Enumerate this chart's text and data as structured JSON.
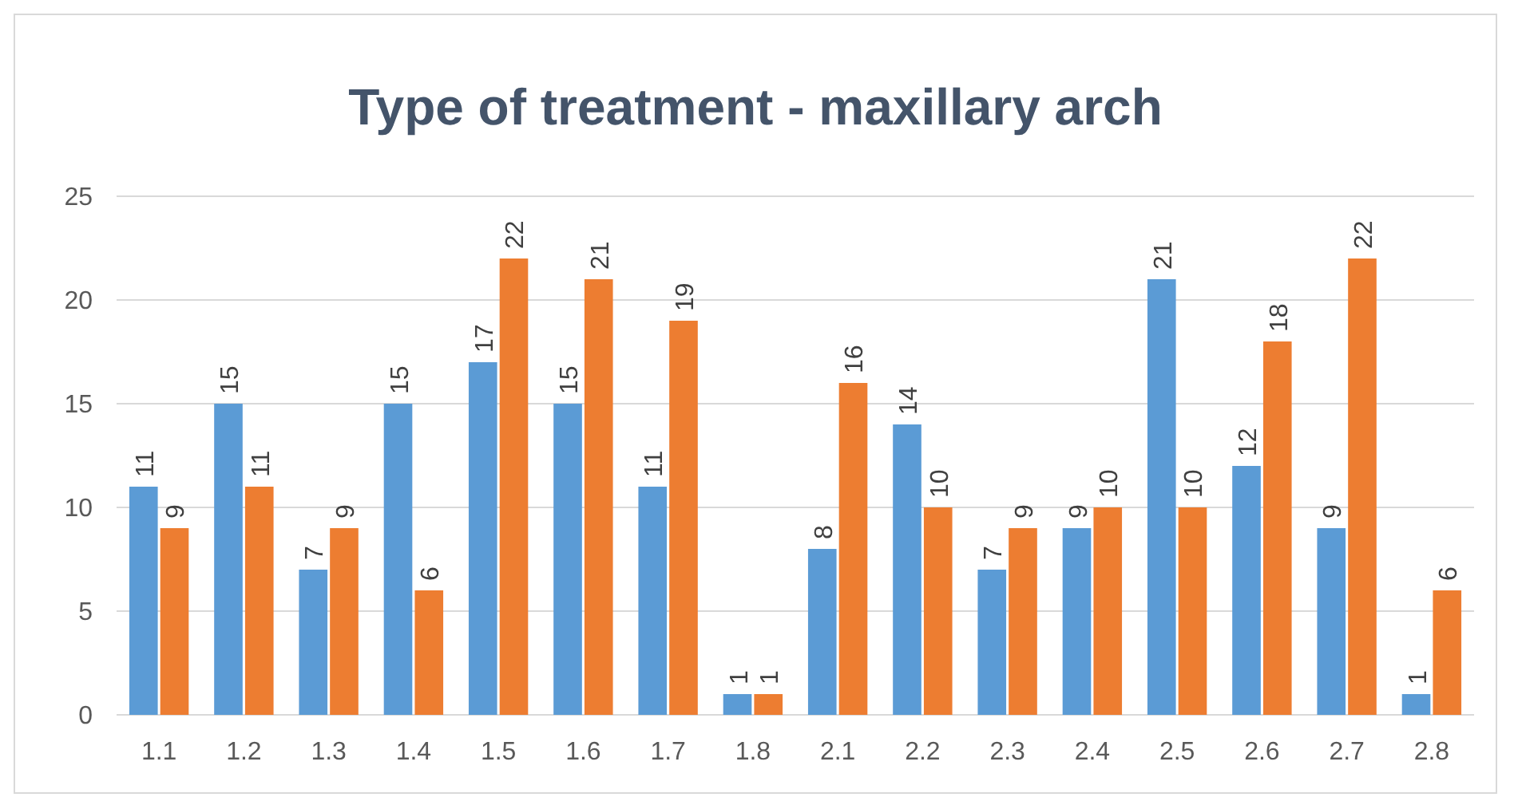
{
  "chart_data": {
    "type": "bar",
    "title": "Type of treatment - maxillary arch",
    "categories": [
      "1.1",
      "1.2",
      "1.3",
      "1.4",
      "1.5",
      "1.6",
      "1.7",
      "1.8",
      "2.1",
      "2.2",
      "2.3",
      "2.4",
      "2.5",
      "2.6",
      "2.7",
      "2.8"
    ],
    "series": [
      {
        "color": "#5b9bd5",
        "values": [
          11,
          15,
          7,
          15,
          17,
          15,
          11,
          1,
          8,
          14,
          7,
          9,
          21,
          12,
          9,
          1
        ]
      },
      {
        "color": "#ed7d31",
        "values": [
          9,
          11,
          9,
          6,
          22,
          21,
          19,
          1,
          16,
          10,
          9,
          10,
          10,
          18,
          22,
          6
        ]
      }
    ],
    "ylim": [
      0,
      25
    ],
    "yticks": [
      0,
      5,
      10,
      15,
      20,
      25
    ],
    "grid": "y",
    "data_labels": true
  }
}
